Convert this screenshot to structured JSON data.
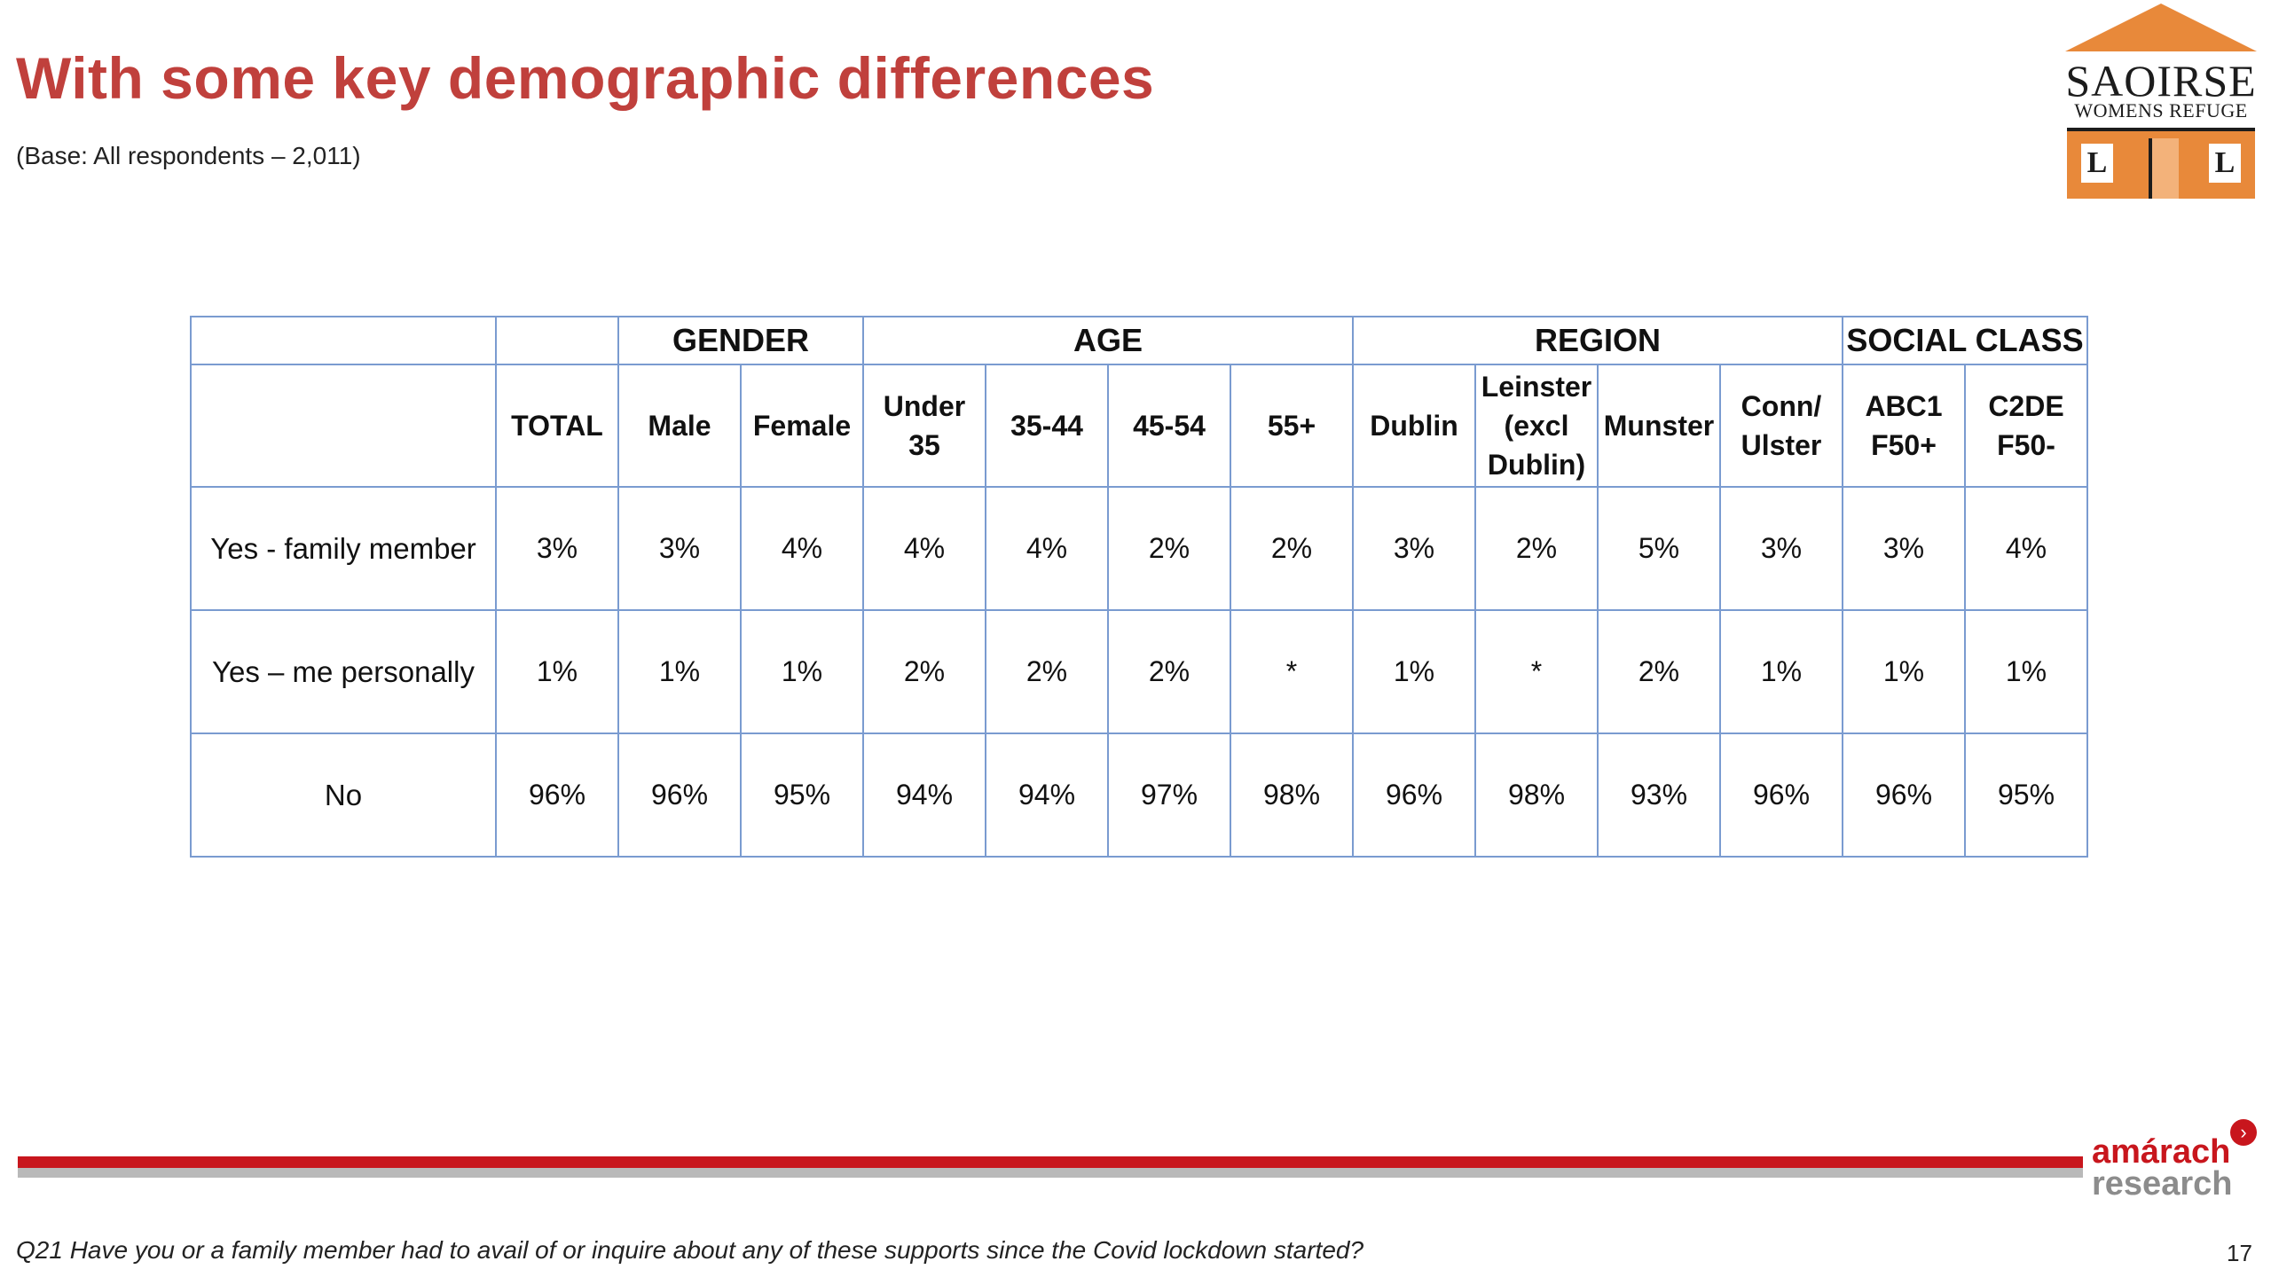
{
  "header": {
    "title": "With some key demographic differences",
    "base": "(Base: All respondents – 2,011)"
  },
  "logo": {
    "word1": "SAOIRSE",
    "word2": "WOMENS REFUGE",
    "window_left": "L",
    "window_right": "L",
    "colors": {
      "orange": "#e8893a",
      "dark": "#1c1c1c"
    }
  },
  "table": {
    "groups": [
      "",
      "",
      "GENDER",
      "AGE",
      "REGION",
      "SOCIAL CLASS"
    ],
    "columns": [
      "TOTAL",
      "Male",
      "Female",
      "Under 35",
      "35-44",
      "45-54",
      "55+",
      "Dublin",
      "Leinster (excl Dublin)",
      "Munster",
      "Conn/ Ulster",
      "ABC1 F50+",
      "C2DE F50-"
    ],
    "rows": [
      {
        "label": "Yes - family member",
        "values": [
          "3%",
          "3%",
          "4%",
          "4%",
          "4%",
          "2%",
          "2%",
          "3%",
          "2%",
          "5%",
          "3%",
          "3%",
          "4%"
        ]
      },
      {
        "label": "Yes – me personally",
        "values": [
          "1%",
          "1%",
          "1%",
          "2%",
          "2%",
          "2%",
          "*",
          "1%",
          "*",
          "2%",
          "1%",
          "1%",
          "1%"
        ]
      },
      {
        "label": "No",
        "values": [
          "96%",
          "96%",
          "95%",
          "94%",
          "94%",
          "97%",
          "98%",
          "96%",
          "98%",
          "93%",
          "96%",
          "96%",
          "95%"
        ]
      }
    ],
    "border_color": "#7a9bd0"
  },
  "footer": {
    "brand_line1": "amárach",
    "brand_line2": "research",
    "question": "Q21 Have you or a family member had to avail of or inquire about any of these supports since the Covid  lockdown started?",
    "page_number": "17",
    "colors": {
      "red": "#c8161d",
      "grey": "#b9b9b9"
    }
  }
}
